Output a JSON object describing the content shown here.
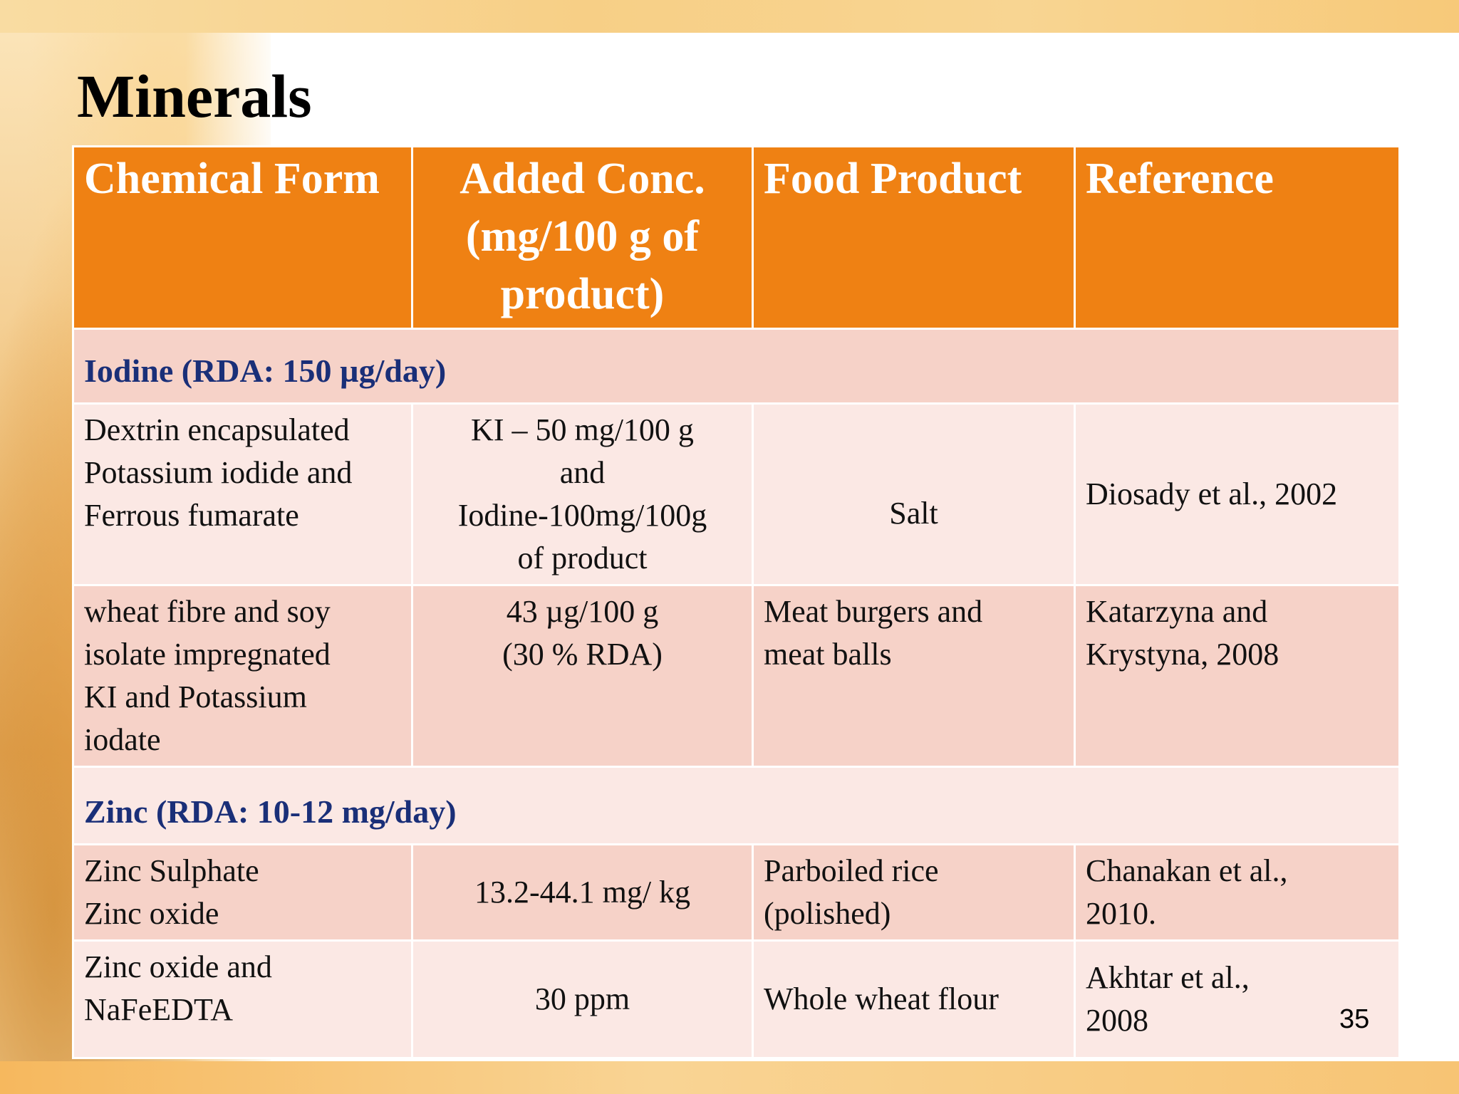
{
  "slide": {
    "title": "Minerals",
    "page_number": "35"
  },
  "table": {
    "headers": [
      "Chemical Form",
      "Added Conc. (mg/100 g of product)",
      "Food Product",
      "Reference"
    ],
    "sections": [
      {
        "label": "Iodine (RDA: 150 µg/day)",
        "rows": [
          {
            "chemical_form": [
              "Dextrin encapsulated",
              "Potassium iodide and",
              "Ferrous fumarate"
            ],
            "added_conc": [
              "KI – 50 mg/100 g",
              "and",
              "Iodine-100mg/100g",
              "of product"
            ],
            "food_product": [
              "Salt"
            ],
            "reference": [
              "Diosady et al., 2002"
            ]
          },
          {
            "chemical_form": [
              "wheat fibre and soy",
              "isolate impregnated",
              "KI and Potassium",
              "iodate"
            ],
            "added_conc": [
              "43 µg/100 g",
              "(30 % RDA)"
            ],
            "food_product": [
              "Meat burgers and",
              "meat balls"
            ],
            "reference": [
              "Katarzyna and",
              "Krystyna, 2008"
            ]
          }
        ]
      },
      {
        "label": "Zinc (RDA: 10-12 mg/day)",
        "rows": [
          {
            "chemical_form": [
              "Zinc Sulphate",
              "Zinc oxide"
            ],
            "added_conc": [
              "13.2-44.1 mg/ kg"
            ],
            "food_product": [
              "Parboiled rice",
              "(polished)"
            ],
            "reference": [
              "Chanakan et al.,",
              "2010."
            ]
          },
          {
            "chemical_form": [
              "Zinc oxide and",
              "NaFeEDTA"
            ],
            "added_conc": [
              "30 ppm"
            ],
            "food_product": [
              "Whole wheat flour"
            ],
            "reference": [
              "Akhtar et al.,",
              "2008"
            ]
          }
        ]
      }
    ]
  }
}
